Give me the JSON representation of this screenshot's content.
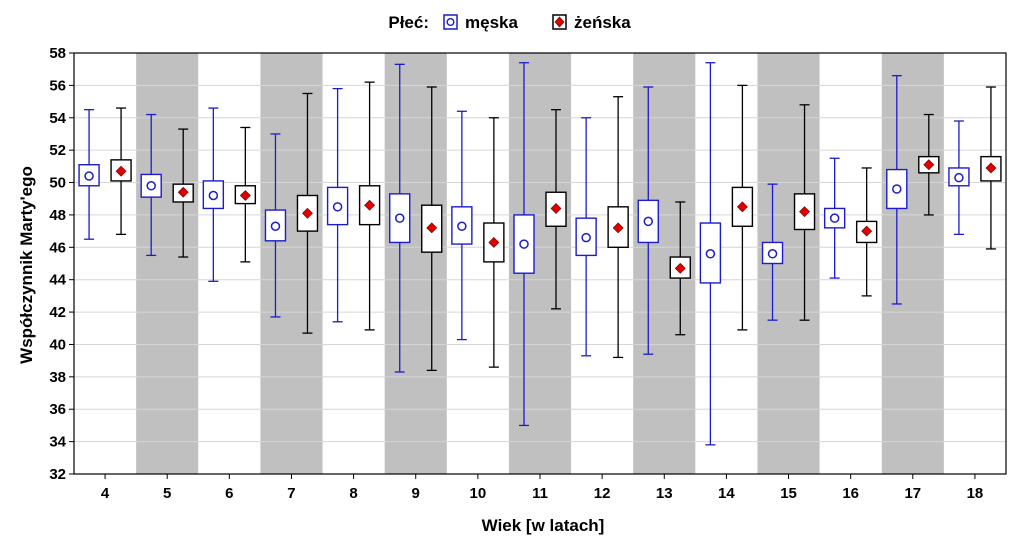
{
  "chart_data": {
    "type": "box",
    "xlabel": "Wiek [w latach]",
    "ylabel": "Współczynnik Marty'ego",
    "ylim": [
      32,
      58
    ],
    "yticks": [
      32,
      34,
      36,
      38,
      40,
      42,
      44,
      46,
      48,
      50,
      52,
      54,
      56,
      58
    ],
    "grid": "horizontal",
    "legend": {
      "title": "Płeć:",
      "position": "top-center",
      "entries": [
        "męska",
        "żeńska"
      ]
    },
    "categories": [
      "4",
      "5",
      "6",
      "7",
      "8",
      "9",
      "10",
      "11",
      "12",
      "13",
      "14",
      "15",
      "16",
      "17",
      "18"
    ],
    "shaded_categories": [
      "5",
      "7",
      "9",
      "11",
      "13",
      "15",
      "17"
    ],
    "series": [
      {
        "name": "męska",
        "color": "#1c1ccc",
        "marker": "circle-open",
        "boxes": [
          {
            "min": 46.5,
            "q1": 49.8,
            "center": 50.4,
            "q3": 51.1,
            "max": 54.5
          },
          {
            "min": 45.5,
            "q1": 49.1,
            "center": 49.8,
            "q3": 50.5,
            "max": 54.2
          },
          {
            "min": 43.9,
            "q1": 48.4,
            "center": 49.2,
            "q3": 50.1,
            "max": 54.6
          },
          {
            "min": 41.7,
            "q1": 46.4,
            "center": 47.3,
            "q3": 48.3,
            "max": 53.0
          },
          {
            "min": 41.4,
            "q1": 47.4,
            "center": 48.5,
            "q3": 49.7,
            "max": 55.8
          },
          {
            "min": 38.3,
            "q1": 46.3,
            "center": 47.8,
            "q3": 49.3,
            "max": 57.3
          },
          {
            "min": 40.3,
            "q1": 46.2,
            "center": 47.3,
            "q3": 48.5,
            "max": 54.4
          },
          {
            "min": 35.0,
            "q1": 44.4,
            "center": 46.2,
            "q3": 48.0,
            "max": 57.4
          },
          {
            "min": 39.3,
            "q1": 45.5,
            "center": 46.6,
            "q3": 47.8,
            "max": 54.0
          },
          {
            "min": 39.4,
            "q1": 46.3,
            "center": 47.6,
            "q3": 48.9,
            "max": 55.9
          },
          {
            "min": 33.8,
            "q1": 43.8,
            "center": 45.6,
            "q3": 47.5,
            "max": 57.4
          },
          {
            "min": 41.5,
            "q1": 45.0,
            "center": 45.6,
            "q3": 46.3,
            "max": 49.9
          },
          {
            "min": 44.1,
            "q1": 47.2,
            "center": 47.8,
            "q3": 48.4,
            "max": 51.5
          },
          {
            "min": 42.5,
            "q1": 48.4,
            "center": 49.6,
            "q3": 50.8,
            "max": 56.6
          },
          {
            "min": 46.8,
            "q1": 49.8,
            "center": 50.3,
            "q3": 50.9,
            "max": 53.8
          }
        ]
      },
      {
        "name": "żeńska",
        "color": "#000000",
        "marker": "diamond-red",
        "boxes": [
          {
            "min": 46.8,
            "q1": 50.1,
            "center": 50.7,
            "q3": 51.4,
            "max": 54.6
          },
          {
            "min": 45.4,
            "q1": 48.8,
            "center": 49.4,
            "q3": 49.9,
            "max": 53.3
          },
          {
            "min": 45.1,
            "q1": 48.7,
            "center": 49.2,
            "q3": 49.8,
            "max": 53.4
          },
          {
            "min": 40.7,
            "q1": 47.0,
            "center": 48.1,
            "q3": 49.2,
            "max": 55.5
          },
          {
            "min": 40.9,
            "q1": 47.4,
            "center": 48.6,
            "q3": 49.8,
            "max": 56.2
          },
          {
            "min": 38.4,
            "q1": 45.7,
            "center": 47.2,
            "q3": 48.6,
            "max": 55.9
          },
          {
            "min": 38.6,
            "q1": 45.1,
            "center": 46.3,
            "q3": 47.5,
            "max": 54.0
          },
          {
            "min": 42.2,
            "q1": 47.3,
            "center": 48.4,
            "q3": 49.4,
            "max": 54.5
          },
          {
            "min": 39.2,
            "q1": 46.0,
            "center": 47.2,
            "q3": 48.5,
            "max": 55.3
          },
          {
            "min": 40.6,
            "q1": 44.1,
            "center": 44.7,
            "q3": 45.4,
            "max": 48.8
          },
          {
            "min": 40.9,
            "q1": 47.3,
            "center": 48.5,
            "q3": 49.7,
            "max": 56.0
          },
          {
            "min": 41.5,
            "q1": 47.1,
            "center": 48.2,
            "q3": 49.3,
            "max": 54.8
          },
          {
            "min": 43.0,
            "q1": 46.3,
            "center": 47.0,
            "q3": 47.6,
            "max": 50.9
          },
          {
            "min": 48.0,
            "q1": 50.6,
            "center": 51.1,
            "q3": 51.6,
            "max": 54.2
          },
          {
            "min": 45.9,
            "q1": 50.1,
            "center": 50.9,
            "q3": 51.6,
            "max": 55.9
          }
        ]
      }
    ]
  }
}
